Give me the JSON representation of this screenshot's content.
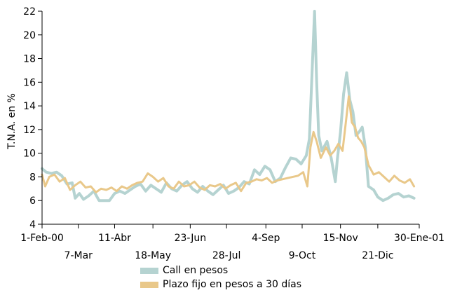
{
  "chart_data": {
    "type": "line",
    "ylabel": "T.N.A. en %",
    "ylim": [
      4,
      22
    ],
    "yticks": [
      4,
      6,
      8,
      10,
      12,
      14,
      16,
      18,
      20,
      22
    ],
    "x_tick_labels_upper": [
      "1-Feb-00",
      "11-Abr",
      "23-Jun",
      "4-Sep",
      "15-Nov",
      "30-Ene-01"
    ],
    "x_tick_labels_lower": [
      "7-Mar",
      "18-May",
      "28-Jul",
      "9-Oct",
      "21-Dic"
    ],
    "x_tick_dates": [
      "2000-02-01",
      "2000-03-07",
      "2000-04-11",
      "2000-05-18",
      "2000-06-23",
      "2000-07-28",
      "2000-09-04",
      "2000-10-09",
      "2000-11-15",
      "2000-12-21",
      "2001-01-30"
    ],
    "xlim": [
      "2000-02-01",
      "2001-01-30"
    ],
    "legend_position": "bottom",
    "grid": false,
    "series": [
      {
        "name": "Call en pesos",
        "color": "#b5d3d1",
        "points": [
          [
            "2000-02-01",
            8.7
          ],
          [
            "2000-02-05",
            8.4
          ],
          [
            "2000-02-10",
            8.3
          ],
          [
            "2000-02-15",
            8.4
          ],
          [
            "2000-02-20",
            8.1
          ],
          [
            "2000-02-25",
            7.4
          ],
          [
            "2000-03-01",
            7.5
          ],
          [
            "2000-03-04",
            6.2
          ],
          [
            "2000-03-08",
            6.6
          ],
          [
            "2000-03-12",
            6.1
          ],
          [
            "2000-03-17",
            6.4
          ],
          [
            "2000-03-22",
            6.8
          ],
          [
            "2000-03-27",
            6.0
          ],
          [
            "2000-04-01",
            6.0
          ],
          [
            "2000-04-06",
            6.0
          ],
          [
            "2000-04-11",
            6.6
          ],
          [
            "2000-04-16",
            6.8
          ],
          [
            "2000-04-21",
            6.6
          ],
          [
            "2000-04-26",
            6.9
          ],
          [
            "2000-05-01",
            7.2
          ],
          [
            "2000-05-06",
            7.4
          ],
          [
            "2000-05-11",
            6.8
          ],
          [
            "2000-05-16",
            7.3
          ],
          [
            "2000-05-21",
            7.0
          ],
          [
            "2000-05-26",
            6.7
          ],
          [
            "2000-05-31",
            7.5
          ],
          [
            "2000-06-05",
            7.0
          ],
          [
            "2000-06-10",
            6.8
          ],
          [
            "2000-06-15",
            7.3
          ],
          [
            "2000-06-20",
            7.6
          ],
          [
            "2000-06-25",
            7.0
          ],
          [
            "2000-06-30",
            6.7
          ],
          [
            "2000-07-05",
            7.2
          ],
          [
            "2000-07-10",
            6.8
          ],
          [
            "2000-07-15",
            6.5
          ],
          [
            "2000-07-20",
            6.9
          ],
          [
            "2000-07-25",
            7.3
          ],
          [
            "2000-07-30",
            6.6
          ],
          [
            "2000-08-04",
            6.8
          ],
          [
            "2000-08-09",
            7.1
          ],
          [
            "2000-08-14",
            7.6
          ],
          [
            "2000-08-19",
            7.4
          ],
          [
            "2000-08-24",
            8.6
          ],
          [
            "2000-08-29",
            8.2
          ],
          [
            "2000-09-03",
            8.9
          ],
          [
            "2000-09-08",
            8.6
          ],
          [
            "2000-09-13",
            7.6
          ],
          [
            "2000-09-18",
            7.9
          ],
          [
            "2000-09-23",
            8.8
          ],
          [
            "2000-09-28",
            9.6
          ],
          [
            "2000-10-03",
            9.5
          ],
          [
            "2000-10-08",
            9.1
          ],
          [
            "2000-10-13",
            9.8
          ],
          [
            "2000-10-16",
            11.2
          ],
          [
            "2000-10-19",
            17.8
          ],
          [
            "2000-10-21",
            22.0
          ],
          [
            "2000-10-23",
            16.0
          ],
          [
            "2000-10-25",
            11.5
          ],
          [
            "2000-10-28",
            10.2
          ],
          [
            "2000-11-02",
            11.0
          ],
          [
            "2000-11-06",
            9.6
          ],
          [
            "2000-11-10",
            7.6
          ],
          [
            "2000-11-12",
            9.5
          ],
          [
            "2000-11-15",
            11.8
          ],
          [
            "2000-11-18",
            15.0
          ],
          [
            "2000-11-21",
            16.8
          ],
          [
            "2000-11-24",
            14.5
          ],
          [
            "2000-11-27",
            13.5
          ],
          [
            "2000-11-30",
            11.5
          ],
          [
            "2000-12-03",
            11.8
          ],
          [
            "2000-12-06",
            12.2
          ],
          [
            "2000-12-09",
            10.5
          ],
          [
            "2000-12-12",
            7.2
          ],
          [
            "2000-12-17",
            6.9
          ],
          [
            "2000-12-21",
            6.3
          ],
          [
            "2000-12-26",
            6.0
          ],
          [
            "2000-12-31",
            6.2
          ],
          [
            "2001-01-05",
            6.5
          ],
          [
            "2001-01-10",
            6.6
          ],
          [
            "2001-01-15",
            6.3
          ],
          [
            "2001-01-20",
            6.4
          ],
          [
            "2001-01-25",
            6.2
          ]
        ]
      },
      {
        "name": "Plazo fijo en pesos a 30 días",
        "color": "#e9c88a",
        "points": [
          [
            "2000-02-01",
            8.2
          ],
          [
            "2000-02-04",
            7.2
          ],
          [
            "2000-02-08",
            8.0
          ],
          [
            "2000-02-13",
            8.2
          ],
          [
            "2000-02-18",
            7.6
          ],
          [
            "2000-02-23",
            7.9
          ],
          [
            "2000-02-28",
            6.9
          ],
          [
            "2000-03-04",
            7.3
          ],
          [
            "2000-03-09",
            7.6
          ],
          [
            "2000-03-14",
            7.1
          ],
          [
            "2000-03-19",
            7.2
          ],
          [
            "2000-03-24",
            6.7
          ],
          [
            "2000-03-29",
            7.0
          ],
          [
            "2000-04-03",
            6.9
          ],
          [
            "2000-04-08",
            7.1
          ],
          [
            "2000-04-13",
            6.8
          ],
          [
            "2000-04-18",
            7.2
          ],
          [
            "2000-04-23",
            7.0
          ],
          [
            "2000-04-28",
            7.3
          ],
          [
            "2000-05-03",
            7.5
          ],
          [
            "2000-05-08",
            7.6
          ],
          [
            "2000-05-13",
            8.3
          ],
          [
            "2000-05-18",
            8.0
          ],
          [
            "2000-05-23",
            7.6
          ],
          [
            "2000-05-28",
            7.9
          ],
          [
            "2000-06-02",
            7.2
          ],
          [
            "2000-06-07",
            7.0
          ],
          [
            "2000-06-12",
            7.6
          ],
          [
            "2000-06-17",
            7.2
          ],
          [
            "2000-06-22",
            7.3
          ],
          [
            "2000-06-27",
            7.6
          ],
          [
            "2000-07-02",
            7.1
          ],
          [
            "2000-07-07",
            6.9
          ],
          [
            "2000-07-12",
            7.3
          ],
          [
            "2000-07-17",
            7.2
          ],
          [
            "2000-07-22",
            7.4
          ],
          [
            "2000-07-27",
            7.0
          ],
          [
            "2000-08-01",
            7.3
          ],
          [
            "2000-08-06",
            7.5
          ],
          [
            "2000-08-11",
            6.8
          ],
          [
            "2000-08-16",
            7.5
          ],
          [
            "2000-08-21",
            7.6
          ],
          [
            "2000-08-26",
            7.8
          ],
          [
            "2000-08-31",
            7.7
          ],
          [
            "2000-09-05",
            7.9
          ],
          [
            "2000-09-10",
            7.5
          ],
          [
            "2000-09-15",
            7.7
          ],
          [
            "2000-09-20",
            7.8
          ],
          [
            "2000-09-25",
            7.9
          ],
          [
            "2000-09-30",
            8.0
          ],
          [
            "2000-10-05",
            8.1
          ],
          [
            "2000-10-10",
            8.4
          ],
          [
            "2000-10-14",
            7.2
          ],
          [
            "2000-10-17",
            10.5
          ],
          [
            "2000-10-20",
            11.8
          ],
          [
            "2000-10-23",
            11.0
          ],
          [
            "2000-10-27",
            9.6
          ],
          [
            "2000-11-01",
            10.5
          ],
          [
            "2000-11-05",
            9.8
          ],
          [
            "2000-11-09",
            10.2
          ],
          [
            "2000-11-13",
            10.8
          ],
          [
            "2000-11-17",
            10.2
          ],
          [
            "2000-11-20",
            12.5
          ],
          [
            "2000-11-23",
            14.8
          ],
          [
            "2000-11-26",
            12.6
          ],
          [
            "2000-11-29",
            12.2
          ],
          [
            "2000-12-02",
            11.3
          ],
          [
            "2000-12-05",
            11.0
          ],
          [
            "2000-12-08",
            10.5
          ],
          [
            "2000-12-12",
            9.0
          ],
          [
            "2000-12-17",
            8.2
          ],
          [
            "2000-12-22",
            8.4
          ],
          [
            "2000-12-27",
            8.0
          ],
          [
            "2001-01-01",
            7.6
          ],
          [
            "2001-01-06",
            8.1
          ],
          [
            "2001-01-11",
            7.7
          ],
          [
            "2001-01-16",
            7.5
          ],
          [
            "2001-01-21",
            7.8
          ],
          [
            "2001-01-25",
            7.2
          ]
        ]
      }
    ]
  }
}
